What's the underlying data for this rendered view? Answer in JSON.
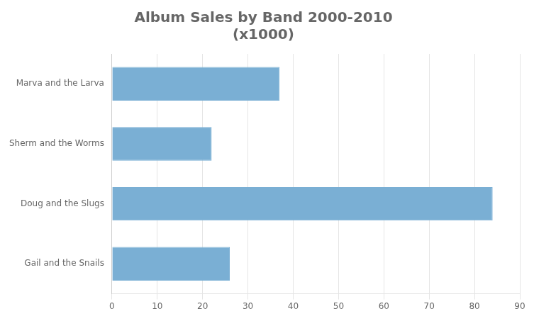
{
  "chart_data": {
    "type": "bar",
    "orientation": "horizontal",
    "title": "Album Sales by Band 2000-2010\n(x1000)",
    "categories": [
      "Gail and the Snails",
      "Doug and the Slugs",
      "Sherm and the Worms",
      "Marva and the Larva"
    ],
    "values": [
      26,
      84,
      22,
      37
    ],
    "color": "#7aafd4",
    "xlim": [
      0,
      90
    ],
    "xticks": [
      0,
      10,
      20,
      30,
      40,
      50,
      60,
      70,
      80,
      90
    ],
    "grid": true
  }
}
